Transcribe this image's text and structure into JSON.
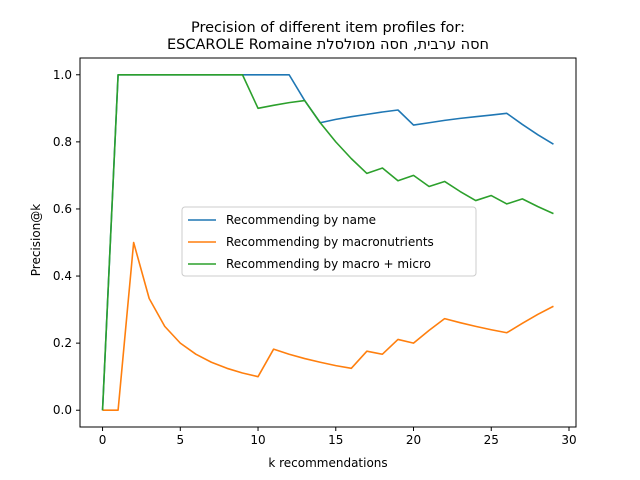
{
  "chart_data": {
    "type": "line",
    "title_line1": "Precision of different item profiles for:",
    "title_line2": "ESCAROLE Romaine חסה ערבית, חסה מסולסלת",
    "xlabel": "k recommendations",
    "ylabel": "Precision@k",
    "xlim": [
      -1.45,
      30.45
    ],
    "ylim": [
      -0.05,
      1.05
    ],
    "xticks": [
      0,
      5,
      10,
      15,
      20,
      25,
      30
    ],
    "yticks": [
      0.0,
      0.2,
      0.4,
      0.6,
      0.8,
      1.0
    ],
    "grid": false,
    "legend_position": "center",
    "x": [
      0,
      1,
      2,
      3,
      4,
      5,
      6,
      7,
      8,
      9,
      10,
      11,
      12,
      13,
      14,
      15,
      16,
      17,
      18,
      19,
      20,
      21,
      22,
      23,
      24,
      25,
      26,
      27,
      28,
      29
    ],
    "series": [
      {
        "name": "Recommending by name",
        "color": "#1f77b4",
        "values": [
          0,
          1,
          1,
          1,
          1,
          1,
          1,
          1,
          1,
          1,
          1,
          1,
          1,
          0.923,
          0.857,
          0.867,
          0.875,
          0.882,
          0.889,
          0.895,
          0.85,
          0.857,
          0.864,
          0.87,
          0.875,
          0.88,
          0.885,
          0.852,
          0.821,
          0.793
        ]
      },
      {
        "name": "Recommending by macronutrients",
        "color": "#ff7f0e",
        "values": [
          0,
          0,
          0.5,
          0.333,
          0.25,
          0.2,
          0.167,
          0.143,
          0.125,
          0.111,
          0.1,
          0.182,
          0.167,
          0.154,
          0.143,
          0.133,
          0.125,
          0.176,
          0.167,
          0.211,
          0.2,
          0.238,
          0.273,
          0.261,
          0.25,
          0.24,
          0.231,
          0.259,
          0.286,
          0.31
        ]
      },
      {
        "name": "Recommending by macro + micro",
        "color": "#2ca02c",
        "values": [
          0,
          1,
          1,
          1,
          1,
          1,
          1,
          1,
          1,
          1,
          0.9,
          0.909,
          0.917,
          0.923,
          0.857,
          0.8,
          0.75,
          0.706,
          0.722,
          0.684,
          0.7,
          0.667,
          0.682,
          0.652,
          0.625,
          0.64,
          0.615,
          0.63,
          0.607,
          0.586
        ]
      }
    ]
  }
}
